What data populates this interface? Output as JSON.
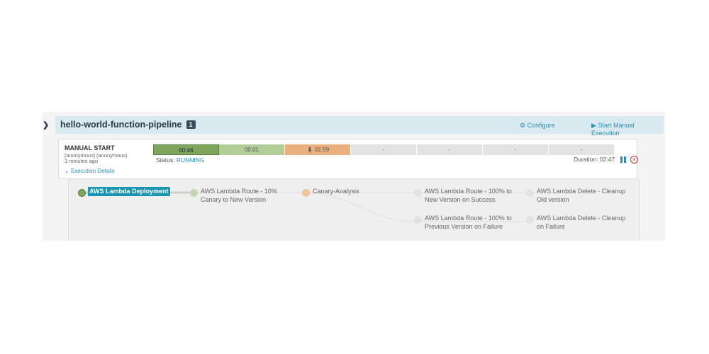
{
  "pipeline": {
    "name": "hello-world-function-pipeline",
    "count": "1",
    "configure": "Configure",
    "start": "Start Manual Execution"
  },
  "execution": {
    "trigger": "MANUAL START",
    "user": "[anonymous] (anonymous)",
    "time": "3 minutes ago",
    "details": "Execution Details",
    "status_label": "Status:",
    "status": "RUNNING",
    "duration": "Duration: 02:47",
    "stages": [
      {
        "label": "00:46",
        "color": "#7ea55c",
        "state": "succeeded"
      },
      {
        "label": "00:01",
        "color": "#b3cd98",
        "state": "succeeded"
      },
      {
        "label": "01:59",
        "color": "#e9b07d",
        "state": "running",
        "icon": "person-icon"
      },
      {
        "label": "-",
        "color": "#e3e3e3",
        "state": "not-started"
      },
      {
        "label": "-",
        "color": "#e3e3e3",
        "state": "not-started"
      },
      {
        "label": "-",
        "color": "#e3e3e3",
        "state": "not-started"
      },
      {
        "label": "-",
        "color": "#e3e3e3",
        "state": "not-started"
      }
    ]
  },
  "graph": {
    "nodes": [
      {
        "label": "AWS Lambda Deployment",
        "color": "#7ea55c",
        "active": true
      },
      {
        "label": "AWS Lambda Route - 10%\nCanary to New Version",
        "color": "#c3d8b0"
      },
      {
        "label": "Canary-Analysis",
        "color": "#eec49b"
      },
      {
        "label": "AWS Lambda Route - 100% to\nNew Version on Success",
        "color": "#e2e2e2"
      },
      {
        "label": "AWS Lambda Delete - Cleanup\nOld version",
        "color": "#e2e2e2"
      },
      {
        "label": "AWS Lambda Route - 100% to\nPrevious Version on Failure",
        "color": "#e2e2e2"
      },
      {
        "label": "AWS Lambda Delete - Cleanup\non Failure",
        "color": "#e2e2e2"
      }
    ]
  }
}
